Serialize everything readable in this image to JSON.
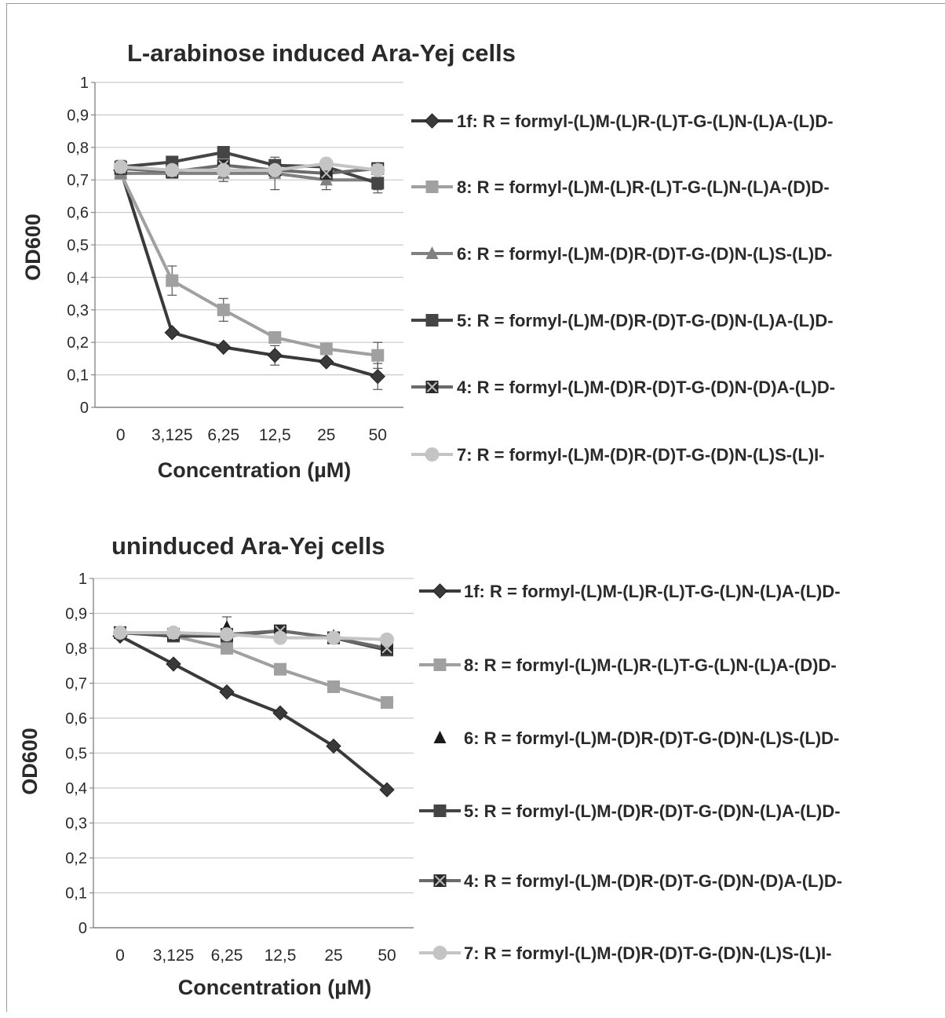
{
  "chart_data": [
    {
      "type": "line",
      "title": "L-arabinose induced Ara-Yej cells",
      "xlabel": "Concentration (µM)",
      "ylabel": "OD600",
      "categories": [
        "0",
        "3,125",
        "6,25",
        "12,5",
        "25",
        "50"
      ],
      "ylim": [
        0,
        1
      ],
      "yticks": [
        "0",
        "0,1",
        "0,2",
        "0,3",
        "0,4",
        "0,5",
        "0,6",
        "0,7",
        "0,8",
        "0,9",
        "1"
      ],
      "grid": true,
      "legend_position": "right",
      "series": [
        {
          "name": "1f: R = formyl-(L)M-(L)R-(L)T-G-(L)N-(L)A-(L)D-",
          "values": [
            0.73,
            0.23,
            0.185,
            0.16,
            0.14,
            0.095
          ],
          "color": "#3a3a3a",
          "marker": "diamond",
          "line": true,
          "errors": [
            0,
            0,
            0,
            0.03,
            0,
            0.04
          ]
        },
        {
          "name": "8: R = formyl-(L)M-(L)R-(L)T-G-(L)N-(L)A-(D)D-",
          "values": [
            0.72,
            0.39,
            0.3,
            0.215,
            0.18,
            0.16
          ],
          "color": "#a0a0a0",
          "marker": "square",
          "line": true,
          "errors": [
            0,
            0.045,
            0.035,
            0,
            0,
            0.04
          ]
        },
        {
          "name": "6: R = formyl-(L)M-(D)R-(D)T-G-(D)N-(L)S-(L)D-",
          "values": [
            0.72,
            0.72,
            0.72,
            0.72,
            0.7,
            0.7
          ],
          "color": "#808080",
          "marker": "triangle",
          "line": true,
          "errors": [
            0,
            0,
            0.025,
            0.05,
            0.03,
            0.03
          ]
        },
        {
          "name": "5: R = formyl-(L)M-(D)R-(D)T-G-(D)N-(L)A-(L)D-",
          "values": [
            0.74,
            0.755,
            0.785,
            0.745,
            0.74,
            0.69
          ],
          "color": "#454545",
          "marker": "square",
          "line": true,
          "errors": [
            0.02,
            0,
            0,
            0,
            0,
            0.03
          ]
        },
        {
          "name": "4: R = formyl-(L)M-(D)R-(D)T-G-(D)N-(D)A-(L)D-",
          "values": [
            0.735,
            0.725,
            0.745,
            0.73,
            0.72,
            0.735
          ],
          "color": "#6a6a6a",
          "marker": "xsquare",
          "line": true,
          "errors": [
            0,
            0,
            0,
            0,
            0,
            0
          ]
        },
        {
          "name": "7: R = formyl-(L)M-(D)R-(D)T-G-(D)N-(L)S-(L)I-",
          "values": [
            0.74,
            0.73,
            0.73,
            0.73,
            0.75,
            0.73
          ],
          "color": "#c4c4c4",
          "marker": "circle",
          "line": true,
          "errors": [
            0,
            0,
            0,
            0,
            0,
            0
          ]
        }
      ]
    },
    {
      "type": "line",
      "title": "uninduced Ara-Yej cells",
      "xlabel": "Concentration (µM)",
      "ylabel": "OD600",
      "categories": [
        "0",
        "3,125",
        "6,25",
        "12,5",
        "25",
        "50"
      ],
      "ylim": [
        0,
        1
      ],
      "yticks": [
        "0",
        "0,1",
        "0,2",
        "0,3",
        "0,4",
        "0,5",
        "0,6",
        "0,7",
        "0,8",
        "0,9",
        "1"
      ],
      "grid": true,
      "legend_position": "right",
      "series": [
        {
          "name": "1f: R = formyl-(L)M-(L)R-(L)T-G-(L)N-(L)A-(L)D-",
          "values": [
            0.835,
            0.755,
            0.675,
            0.615,
            0.52,
            0.395
          ],
          "color": "#3a3a3a",
          "marker": "diamond",
          "line": true,
          "errors": [
            0,
            0,
            0,
            0,
            0,
            0
          ]
        },
        {
          "name": "8: R = formyl-(L)M-(L)R-(L)T-G-(L)N-(L)A-(D)D-",
          "values": [
            0.845,
            0.835,
            0.8,
            0.74,
            0.69,
            0.645
          ],
          "color": "#a0a0a0",
          "marker": "square",
          "line": true,
          "errors": [
            0,
            0,
            0,
            0,
            0,
            0
          ]
        },
        {
          "name": "6: R = formyl-(L)M-(D)R-(D)T-G-(D)N-(L)S-(L)D-",
          "values": [
            0.845,
            0.845,
            0.86,
            0.845,
            0.835,
            0.805
          ],
          "color": "#1a1a1a",
          "marker": "triangle",
          "line": false,
          "errors": [
            0,
            0,
            0.03,
            0,
            0,
            0
          ]
        },
        {
          "name": "5: R = formyl-(L)M-(D)R-(D)T-G-(D)N-(L)A-(L)D-",
          "values": [
            0.845,
            0.835,
            0.835,
            0.85,
            0.83,
            0.795
          ],
          "color": "#454545",
          "marker": "square",
          "line": true,
          "errors": [
            0,
            0,
            0,
            0,
            0,
            0
          ]
        },
        {
          "name": "4: R = formyl-(L)M-(D)R-(D)T-G-(D)N-(D)A-(L)D-",
          "values": [
            0.845,
            0.84,
            0.84,
            0.85,
            0.83,
            0.8
          ],
          "color": "#6a6a6a",
          "marker": "xsquare",
          "line": true,
          "errors": [
            0,
            0,
            0,
            0,
            0,
            0
          ]
        },
        {
          "name": "7: R = formyl-(L)M-(D)R-(D)T-G-(D)N-(L)S-(L)I-",
          "values": [
            0.845,
            0.845,
            0.84,
            0.83,
            0.83,
            0.825
          ],
          "color": "#c4c4c4",
          "marker": "circle",
          "line": true,
          "errors": [
            0,
            0,
            0,
            0,
            0,
            0
          ]
        }
      ]
    }
  ]
}
